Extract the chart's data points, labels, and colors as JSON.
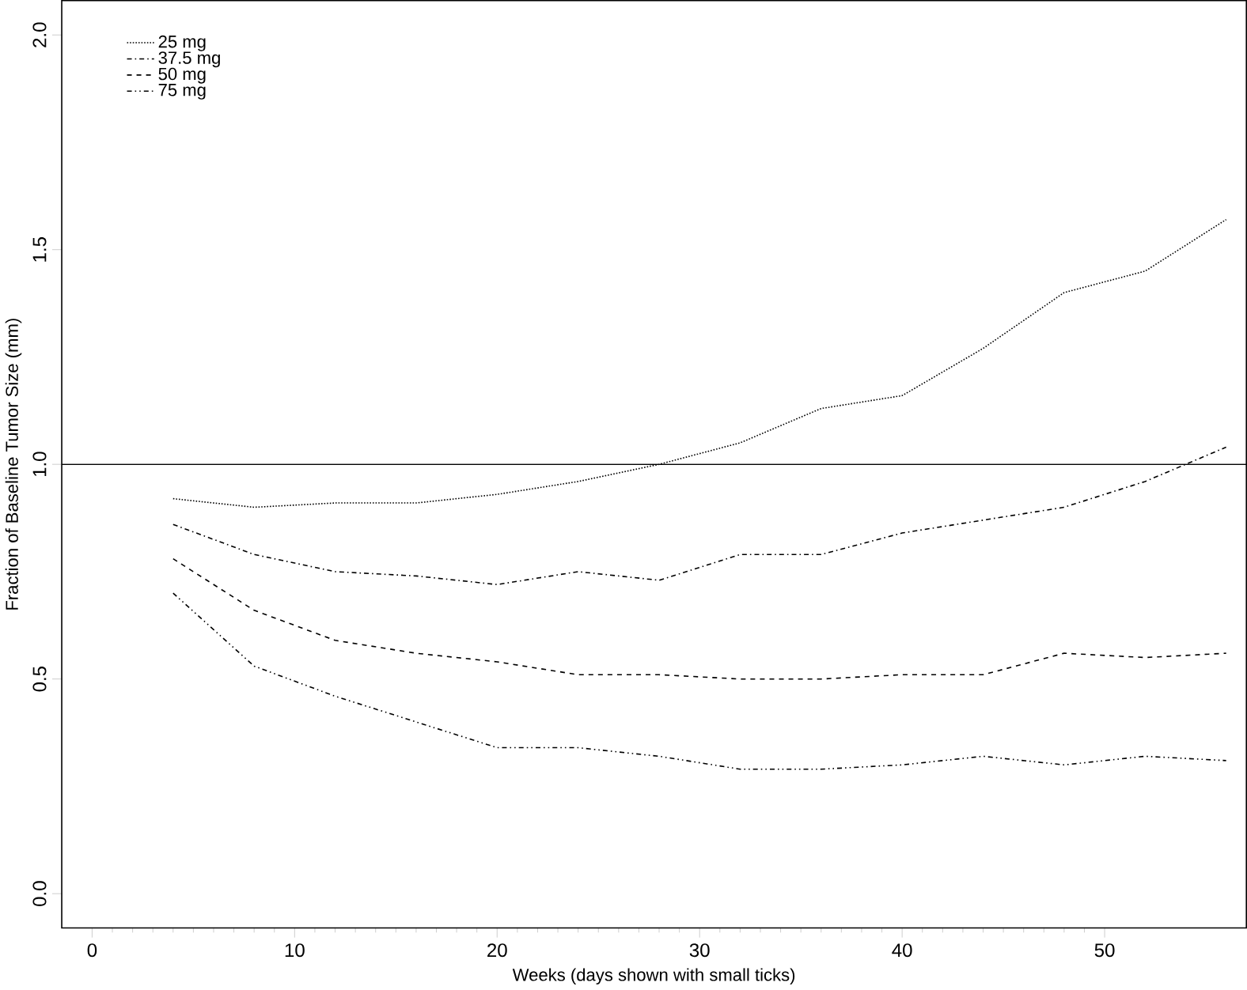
{
  "chart_data": {
    "type": "line",
    "xlabel": "Weeks (days shown with small ticks)",
    "ylabel": "Fraction of Baseline Tumor Size (mm)",
    "x": [
      4,
      8,
      12,
      16,
      20,
      24,
      28,
      32,
      36,
      40,
      44,
      48,
      52,
      56
    ],
    "series": [
      {
        "name": "25 mg",
        "color": "#000000",
        "line_style": "dotted",
        "values": [
          0.92,
          0.9,
          0.91,
          0.91,
          0.93,
          0.96,
          1.0,
          1.05,
          1.13,
          1.16,
          1.27,
          1.4,
          1.45,
          1.57
        ]
      },
      {
        "name": "37.5 mg",
        "color": "#000000",
        "line_style": "dashdot",
        "values": [
          0.86,
          0.79,
          0.75,
          0.74,
          0.72,
          0.75,
          0.73,
          0.79,
          0.79,
          0.84,
          0.87,
          0.9,
          0.96,
          1.04
        ]
      },
      {
        "name": "50 mg",
        "color": "#000000",
        "line_style": "dashed",
        "values": [
          0.78,
          0.66,
          0.59,
          0.56,
          0.54,
          0.51,
          0.51,
          0.5,
          0.5,
          0.51,
          0.51,
          0.56,
          0.55,
          0.56
        ]
      },
      {
        "name": "75 mg",
        "color": "#000000",
        "line_style": "dashdotdot",
        "values": [
          0.7,
          0.53,
          0.46,
          0.4,
          0.34,
          0.34,
          0.32,
          0.29,
          0.29,
          0.3,
          0.32,
          0.3,
          0.32,
          0.31
        ]
      }
    ],
    "xlim": [
      -1.5,
      57
    ],
    "ylim": [
      -0.08,
      2.08
    ],
    "xticks": [
      0,
      10,
      20,
      30,
      40,
      50
    ],
    "yticks": [
      {
        "value": 0,
        "label": "0.0"
      },
      {
        "value": 0.5,
        "label": "0.5"
      },
      {
        "value": 1,
        "label": "1.0"
      },
      {
        "value": 1.5,
        "label": "1.5"
      },
      {
        "value": 2,
        "label": "2.0"
      }
    ],
    "ref_lines": [
      {
        "axis": "y",
        "value": 1,
        "color": "#000000"
      }
    ],
    "legend": "top left",
    "grid": false,
    "marker": "none"
  }
}
